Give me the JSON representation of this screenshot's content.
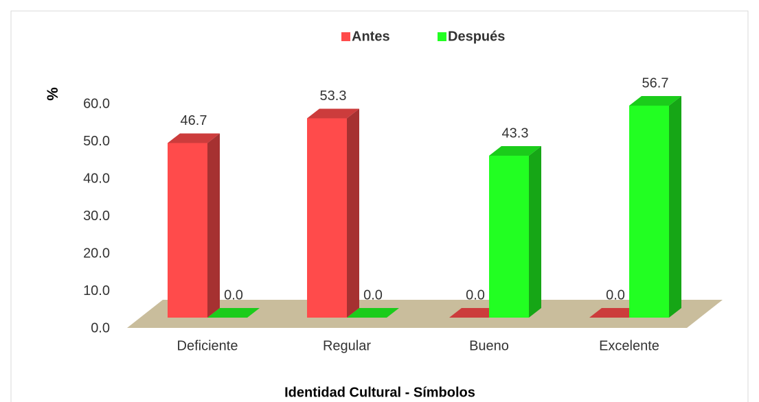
{
  "chart_data": {
    "type": "bar3d",
    "x_label": "Identidad Cultural - Símbolos",
    "y_label": "%",
    "categories": [
      "Deficiente",
      "Regular",
      "Bueno",
      "Excelente"
    ],
    "series": [
      {
        "name": "Antes",
        "color": "#ff4b4b",
        "values": [
          46.7,
          53.3,
          0.0,
          0.0
        ],
        "value_labels": [
          "46.7",
          "53.3",
          "0.0",
          "0.0"
        ]
      },
      {
        "name": "Después",
        "color": "#22ff22",
        "values": [
          0.0,
          0.0,
          43.3,
          56.7
        ],
        "value_labels": [
          "0.0",
          "0.0",
          "43.3",
          "56.7"
        ]
      }
    ],
    "ylim": [
      0,
      60
    ],
    "yticks": [
      {
        "value": 0,
        "label": "0.0"
      },
      {
        "value": 10,
        "label": "10.0"
      },
      {
        "value": 20,
        "label": "20.0"
      },
      {
        "value": 30,
        "label": "30.0"
      },
      {
        "value": 40,
        "label": "40.0"
      },
      {
        "value": 50,
        "label": "50.0"
      },
      {
        "value": 60,
        "label": "60.0"
      }
    ],
    "legend": "top"
  }
}
